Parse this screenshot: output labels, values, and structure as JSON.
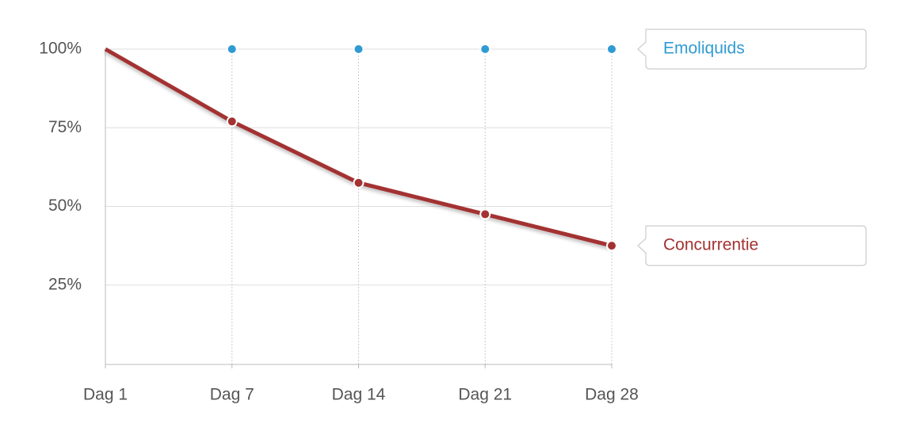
{
  "chart_data": {
    "type": "line",
    "categories": [
      "Dag 1",
      "Dag 7",
      "Dag 14",
      "Dag 21",
      "Dag 28"
    ],
    "series": [
      {
        "name": "Emoliquids",
        "color": "#2f9bd3",
        "values": [
          100,
          100,
          100,
          100,
          100
        ]
      },
      {
        "name": "Concurrentie",
        "color": "#a33232",
        "values": [
          100,
          77,
          57.5,
          47.5,
          37.5
        ]
      }
    ],
    "ylim": [
      0,
      100
    ],
    "yticks": [
      {
        "value": 25,
        "label": "25%"
      },
      {
        "value": 50,
        "label": "50%"
      },
      {
        "value": 75,
        "label": "75%"
      },
      {
        "value": 100,
        "label": "100%"
      }
    ],
    "grid": true
  }
}
